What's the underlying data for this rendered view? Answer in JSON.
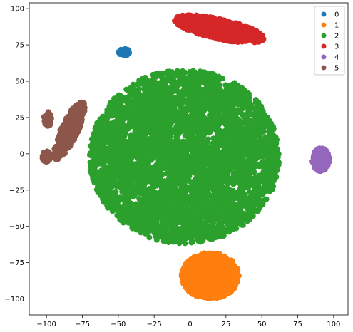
{
  "chart_data": {
    "type": "scatter",
    "title": "",
    "xlabel": "",
    "ylabel": "",
    "xlim": [
      -112,
      110
    ],
    "ylim": [
      -111,
      104
    ],
    "xticks": [
      -100,
      -75,
      -50,
      -25,
      0,
      25,
      50,
      75,
      100
    ],
    "yticks": [
      -100,
      -75,
      -50,
      -25,
      0,
      25,
      50,
      75,
      100
    ],
    "grid": false,
    "legend": {
      "placement": "top-right",
      "entries": [
        "0",
        "1",
        "2",
        "3",
        "4",
        "5"
      ]
    },
    "series": [
      {
        "name": "0",
        "color": "#1f77b4",
        "clusters": [
          {
            "cx": -46,
            "cy": 70,
            "rx": 4,
            "ry": 2.5,
            "n": 40,
            "shape": "ellipse"
          }
        ]
      },
      {
        "name": "1",
        "color": "#ff7f0e",
        "clusters": [
          {
            "cx": 14,
            "cy": -84,
            "rx": 20,
            "ry": 16,
            "n": 900,
            "shape": "ellipse"
          }
        ]
      },
      {
        "name": "2",
        "color": "#2ca02c",
        "clusters": [
          {
            "cx": -4,
            "cy": -2,
            "rx": 66,
            "ry": 60,
            "n": 4500,
            "shape": "ellipse"
          }
        ]
      },
      {
        "name": "3",
        "color": "#d62728",
        "clusters": [
          {
            "cx": 20,
            "cy": 86,
            "rx": 32,
            "ry": 7,
            "angle": -12,
            "n": 700,
            "shape": "ellipse"
          }
        ]
      },
      {
        "name": "4",
        "color": "#9467bd",
        "clusters": [
          {
            "cx": 91,
            "cy": -4,
            "rx": 6,
            "ry": 8,
            "n": 250,
            "shape": "ellipse"
          }
        ]
      },
      {
        "name": "5",
        "color": "#8c564b",
        "clusters": [
          {
            "cx": -84,
            "cy": 16,
            "rx": 6,
            "ry": 22,
            "angle": -25,
            "n": 350,
            "shape": "ellipse"
          },
          {
            "cx": -99,
            "cy": 24,
            "rx": 3,
            "ry": 5,
            "n": 60,
            "shape": "ellipse"
          },
          {
            "cx": -100,
            "cy": -2,
            "rx": 3,
            "ry": 4,
            "n": 50,
            "shape": "ellipse"
          }
        ]
      }
    ]
  }
}
